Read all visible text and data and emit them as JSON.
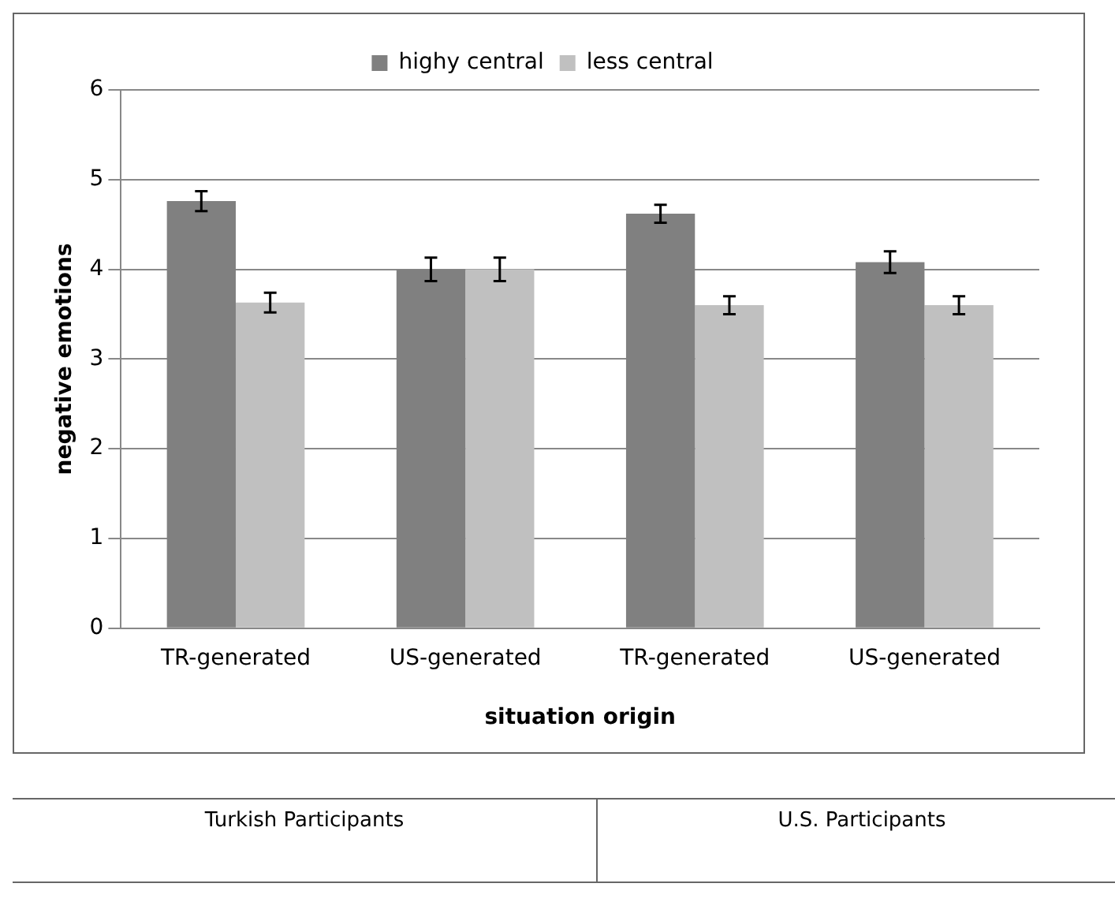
{
  "chart_data": {
    "type": "bar",
    "xlabel": "situation origin",
    "ylabel": "negative emotions",
    "categories": [
      "TR-generated",
      "US-generated",
      "TR-generated",
      "US-generated"
    ],
    "series": [
      {
        "name": "highy central",
        "color": "#808080",
        "values": [
          4.76,
          4.0,
          4.62,
          4.08
        ],
        "errors": [
          0.11,
          0.13,
          0.1,
          0.12
        ]
      },
      {
        "name": "less central",
        "color": "#c0c0c0",
        "values": [
          3.63,
          4.0,
          3.6,
          3.6
        ],
        "errors": [
          0.11,
          0.13,
          0.1,
          0.1
        ]
      }
    ],
    "ylim": [
      0,
      6
    ],
    "yticks": [
      0,
      1,
      2,
      3,
      4,
      5,
      6
    ],
    "grid": "y",
    "legend": "top",
    "annotations": [
      "Turkish Participants",
      "U.S. Participants"
    ]
  }
}
